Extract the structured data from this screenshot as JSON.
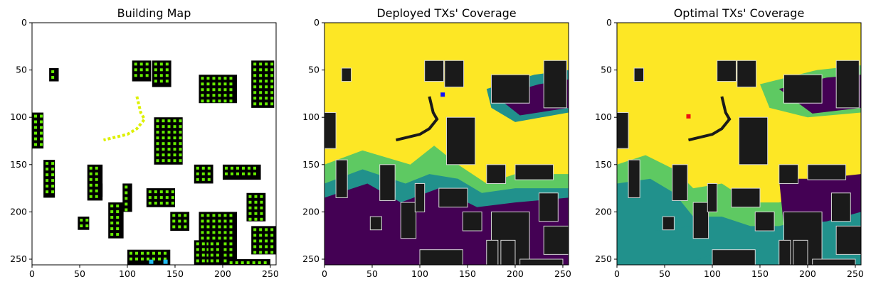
{
  "chart_data": [
    {
      "type": "heatmap",
      "title": "Building Map",
      "xlim": [
        0,
        256
      ],
      "ylim": [
        256,
        0
      ],
      "xticks": [
        0,
        50,
        100,
        150,
        200,
        250
      ],
      "yticks": [
        0,
        50,
        100,
        150,
        200,
        250
      ],
      "xlabel": "",
      "ylabel": "",
      "colors": {
        "background": "#ffffff",
        "building": "#000000",
        "sample_point": "#66ee00",
        "tx_candidate": "#ddf000",
        "deployed_tx": "#22bbee"
      }
    },
    {
      "type": "heatmap",
      "title": "Deployed TXs' Coverage",
      "xlim": [
        0,
        256
      ],
      "ylim": [
        256,
        0
      ],
      "xticks": [
        0,
        50,
        100,
        150,
        200,
        250
      ],
      "yticks": [
        0,
        50,
        100,
        150,
        200,
        250
      ],
      "xlabel": "",
      "ylabel": "",
      "colors": {
        "high": "#fde725",
        "mid": "#5ec962",
        "low": "#21918c",
        "none": "#440154",
        "building": "#1a1a1a",
        "tx": "#1010ff"
      },
      "tx_location": [
        124,
        76
      ]
    },
    {
      "type": "heatmap",
      "title": "Optimal TXs' Coverage",
      "xlim": [
        0,
        256
      ],
      "ylim": [
        256,
        0
      ],
      "xticks": [
        0,
        50,
        100,
        150,
        200,
        250
      ],
      "yticks": [
        0,
        50,
        100,
        150,
        200,
        250
      ],
      "xlabel": "",
      "ylabel": "",
      "colors": {
        "high": "#fde725",
        "mid": "#5ec962",
        "low": "#21918c",
        "none": "#440154",
        "building": "#1a1a1a",
        "tx": "#ee1010"
      },
      "tx_location": [
        75,
        99
      ]
    }
  ]
}
